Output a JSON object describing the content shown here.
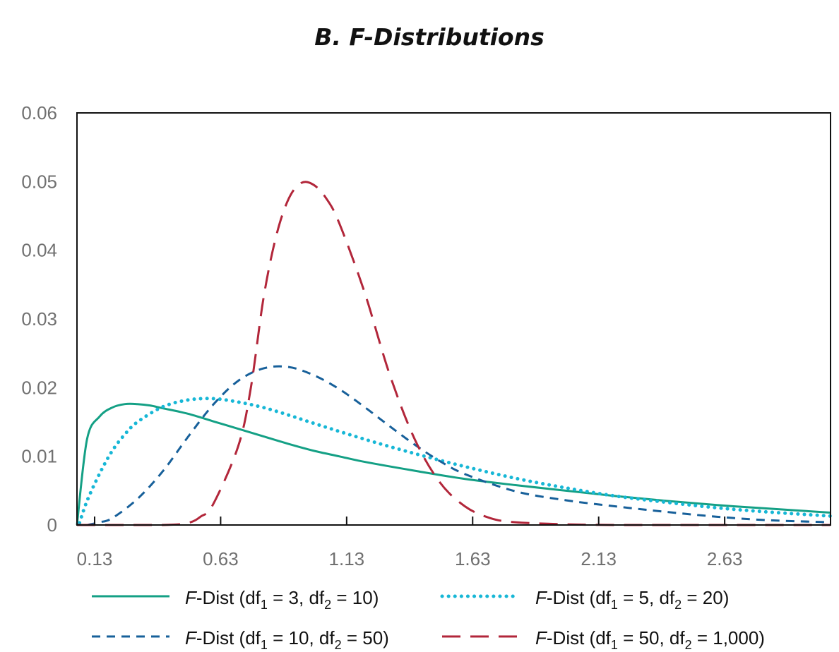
{
  "chart_data": {
    "type": "line",
    "title": "B. F-Distributions",
    "xlabel": "",
    "ylabel": "",
    "xlim": [
      0.06,
      3.05
    ],
    "ylim": [
      0,
      0.06
    ],
    "x_ticks": [
      0.13,
      0.63,
      1.13,
      1.63,
      2.13,
      2.63
    ],
    "x_tick_labels": [
      "0.13",
      "0.63",
      "1.13",
      "1.63",
      "2.13",
      "2.63"
    ],
    "y_ticks": [
      0,
      0.01,
      0.02,
      0.03,
      0.04,
      0.05,
      0.06
    ],
    "y_tick_labels": [
      "0",
      "0.01",
      "0.02",
      "0.03",
      "0.04",
      "0.05",
      "0.06"
    ],
    "grid": false,
    "legend_position": "bottom",
    "series": [
      {
        "name_prefix": "F",
        "name_main": "-Dist (df",
        "df1_sub": "1",
        "df1_text": " = 3, df",
        "df2_sub": "2",
        "df2_text": " = 10)",
        "color": "#14a085",
        "style": "solid",
        "x": [
          0.06,
          0.1,
          0.15,
          0.2,
          0.25,
          0.3,
          0.35,
          0.4,
          0.5,
          0.6,
          0.7,
          0.8,
          0.9,
          1.0,
          1.1,
          1.2,
          1.4,
          1.6,
          1.8,
          2.0,
          2.2,
          2.4,
          2.6,
          2.8,
          3.05
        ],
        "y": [
          0.0,
          0.0125,
          0.0158,
          0.0171,
          0.0176,
          0.0176,
          0.0174,
          0.017,
          0.0162,
          0.0151,
          0.014,
          0.0129,
          0.0118,
          0.0108,
          0.01,
          0.0092,
          0.0079,
          0.0067,
          0.0058,
          0.005,
          0.0042,
          0.0035,
          0.0029,
          0.0024,
          0.0018
        ]
      },
      {
        "name_prefix": "F",
        "name_main": "-Dist (df",
        "df1_sub": "1",
        "df1_text": " = 5, df",
        "df2_sub": "2",
        "df2_text": " = 20)",
        "color": "#17b7d6",
        "style": "dotted",
        "x": [
          0.07,
          0.1,
          0.15,
          0.2,
          0.25,
          0.3,
          0.4,
          0.5,
          0.6,
          0.7,
          0.8,
          0.9,
          1.0,
          1.2,
          1.4,
          1.6,
          1.8,
          2.0,
          2.2,
          2.4,
          2.6,
          2.8,
          3.05
        ],
        "y": [
          0.0003,
          0.0035,
          0.0075,
          0.0108,
          0.0132,
          0.015,
          0.0172,
          0.0182,
          0.0184,
          0.0179,
          0.0171,
          0.016,
          0.0148,
          0.0125,
          0.0104,
          0.0085,
          0.0068,
          0.0054,
          0.0042,
          0.0033,
          0.0025,
          0.0019,
          0.0013
        ]
      },
      {
        "name_prefix": "F",
        "name_main": "-Dist (df",
        "df1_sub": "1",
        "df1_text": " = 10, df",
        "df2_sub": "2",
        "df2_text": " = 50)",
        "color": "#17609a",
        "style": "short-dash",
        "x": [
          0.1,
          0.15,
          0.2,
          0.3,
          0.4,
          0.5,
          0.6,
          0.7,
          0.8,
          0.9,
          1.0,
          1.1,
          1.2,
          1.3,
          1.4,
          1.5,
          1.6,
          1.8,
          2.0,
          2.2,
          2.4,
          2.6,
          2.8,
          3.05
        ],
        "y": [
          0.0,
          0.0004,
          0.001,
          0.0038,
          0.0078,
          0.0128,
          0.0175,
          0.021,
          0.0228,
          0.023,
          0.0218,
          0.0198,
          0.0172,
          0.0144,
          0.0117,
          0.0093,
          0.0074,
          0.0049,
          0.0036,
          0.0027,
          0.0019,
          0.0012,
          0.0007,
          0.0004
        ]
      },
      {
        "name_prefix": "F",
        "name_main": "-Dist (df",
        "df1_sub": "1",
        "df1_text": " = 50, df",
        "df2_sub": "2",
        "df2_text": " = 1,000)",
        "color": "#b2263a",
        "style": "long-dash",
        "x": [
          0.06,
          0.4,
          0.5,
          0.55,
          0.6,
          0.7,
          0.75,
          0.8,
          0.85,
          0.9,
          0.95,
          1.0,
          1.05,
          1.1,
          1.2,
          1.3,
          1.4,
          1.5,
          1.6,
          1.7,
          1.8,
          2.0,
          2.2,
          2.5,
          3.05
        ],
        "y": [
          0.0,
          0.0,
          0.0003,
          0.0012,
          0.003,
          0.0115,
          0.02,
          0.033,
          0.042,
          0.0475,
          0.0498,
          0.0495,
          0.0475,
          0.044,
          0.034,
          0.022,
          0.0125,
          0.0062,
          0.0027,
          0.001,
          0.0004,
          0.0001,
          0.0,
          0.0,
          0.0
        ]
      }
    ]
  }
}
